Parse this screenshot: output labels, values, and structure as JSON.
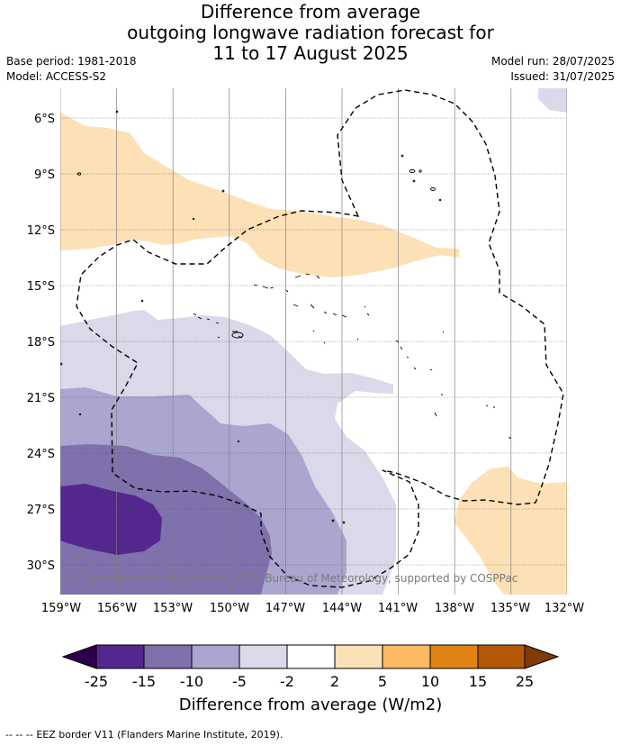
{
  "title": {
    "line1": "Difference from average",
    "line2": "outgoing longwave radiation forecast for",
    "line3": "11 to 17 August 2025"
  },
  "meta": {
    "base_period": "Base period: 1981-2018",
    "model": "Model: ACCESS-S2",
    "model_run": "Model run: 28/07/2025",
    "issued": "Issued: 31/07/2025"
  },
  "map": {
    "lat_ticks": [
      "6°S",
      "9°S",
      "12°S",
      "15°S",
      "18°S",
      "21°S",
      "24°S",
      "27°S",
      "30°S"
    ],
    "lon_ticks": [
      "159°W",
      "156°W",
      "153°W",
      "150°W",
      "147°W",
      "144°W",
      "141°W",
      "138°W",
      "135°W",
      "132°W"
    ],
    "copyright": "© Commonwealth of Australia 2025, Bureau of Meteorology, supported by COSPPac"
  },
  "colorbar": {
    "labels": [
      "-25",
      "-15",
      "-10",
      "-5",
      "-2",
      "2",
      "5",
      "10",
      "15",
      "25"
    ],
    "colors": [
      "#54278f",
      "#7f71ab",
      "#aba6cf",
      "#d9d9ea",
      "#ffffff",
      "#fde0b6",
      "#fdb863",
      "#e08214",
      "#b35806"
    ],
    "under_color": "#2d004b",
    "over_color": "#7f3b08",
    "title": "Difference from average (W/m2)"
  },
  "footer": {
    "legend_symbol": "-- -- --",
    "legend_text": "EEZ border V11 (Flanders Marine Institute, 2019)."
  }
}
